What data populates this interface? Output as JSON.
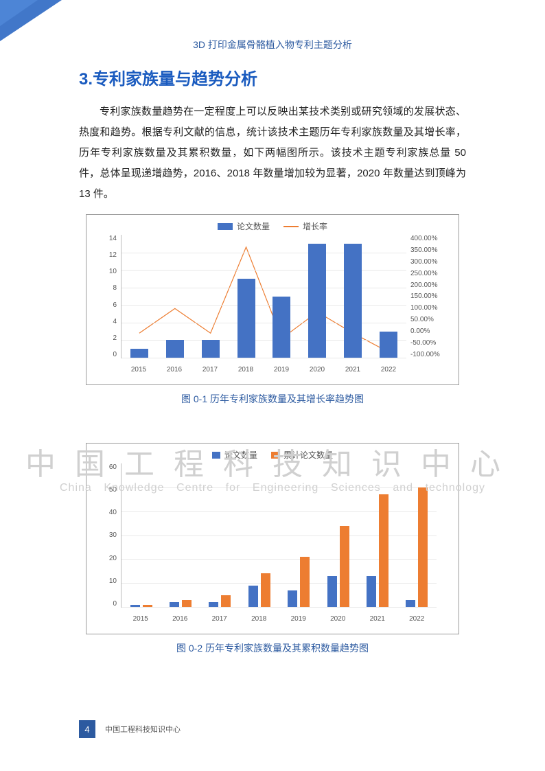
{
  "header": {
    "subtitle": "3D 打印金属骨骼植入物专利主题分析"
  },
  "section": {
    "number": "3.",
    "title": "专利家族量与趋势分析"
  },
  "paragraph": "专利家族数量趋势在一定程度上可以反映出某技术类别或研究领域的发展状态、热度和趋势。根据专利文献的信息，统计该技术主题历年专利家族数量及其增长率，历年专利家族数量及其累积数量，如下两幅图所示。该技术主题专利家族总量 50 件，总体呈现递增趋势，2016、2018 年数量增加较为显著，2020 年数量达到顶峰为 13 件。",
  "chart1": {
    "type": "bar+line",
    "legend_bar": "论文数量",
    "legend_line": "增长率",
    "categories": [
      "2015",
      "2016",
      "2017",
      "2018",
      "2019",
      "2020",
      "2021",
      "2022"
    ],
    "bar_values": [
      1,
      2,
      2,
      9,
      7,
      13,
      13,
      3
    ],
    "line_values": [
      0,
      100,
      0,
      350,
      -22,
      86,
      0,
      -77
    ],
    "y_left_max": 14,
    "y_left_ticks": [
      "14",
      "12",
      "10",
      "8",
      "6",
      "4",
      "2",
      "0"
    ],
    "y_right_ticks": [
      "400.00%",
      "350.00%",
      "300.00%",
      "250.00%",
      "200.00%",
      "150.00%",
      "100.00%",
      "50.00%",
      "0.00%",
      "-50.00%",
      "-100.00%"
    ],
    "y_right_min": -100,
    "y_right_max": 400,
    "bar_color": "#4472c4",
    "line_color": "#ed7d31",
    "caption": "图 0-1  历年专利家族数量及其增长率趋势图"
  },
  "chart2": {
    "type": "grouped-bar",
    "legend_a": "论文数量",
    "legend_b": "累计论文数量",
    "categories": [
      "2015",
      "2016",
      "2017",
      "2018",
      "2019",
      "2020",
      "2021",
      "2022"
    ],
    "values_a": [
      1,
      2,
      2,
      9,
      7,
      13,
      13,
      3
    ],
    "values_b": [
      1,
      3,
      5,
      14,
      21,
      34,
      47,
      50
    ],
    "y_max": 60,
    "y_ticks": [
      "60",
      "50",
      "40",
      "30",
      "20",
      "10",
      "0"
    ],
    "color_a": "#4472c4",
    "color_b": "#ed7d31",
    "caption": "图 0-2  历年专利家族数量及其累积数量趋势图"
  },
  "watermark": {
    "cn": "中国工程科技知识中心",
    "en": "China Knowledge Centre for Engineering Sciences and technology"
  },
  "footer": {
    "page": "4",
    "org": "中国工程科技知识中心"
  }
}
